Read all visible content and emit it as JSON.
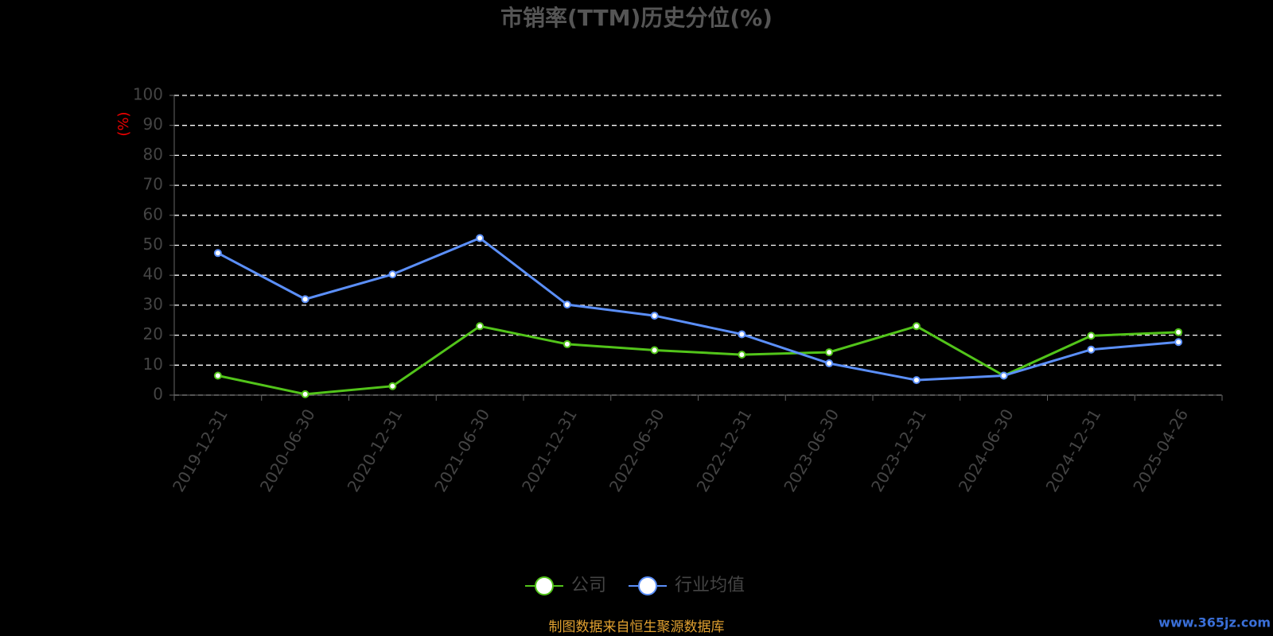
{
  "chart_data": {
    "type": "line",
    "title": "市销率(TTM)历史分位(%)",
    "y_axis_label": "(%)",
    "categories": [
      "2019-12-31",
      "2020-06-30",
      "2020-12-31",
      "2021-06-30",
      "2021-12-31",
      "2022-06-30",
      "2022-12-31",
      "2023-06-30",
      "2023-12-31",
      "2024-06-30",
      "2024-12-31",
      "2025-04-26"
    ],
    "series": [
      {
        "name": "公司",
        "color": "#52c41a",
        "values": [
          6.5,
          0.3,
          3,
          23,
          17,
          15,
          13.5,
          14.3,
          23,
          6.5,
          19.8,
          21
        ]
      },
      {
        "name": "行业均值",
        "color": "#5b8ff9",
        "values": [
          47.4,
          32,
          40.3,
          52.4,
          30.2,
          26.5,
          20.3,
          10.6,
          5,
          6.5,
          15.2,
          17.7
        ]
      }
    ],
    "ylim": [
      0,
      100
    ],
    "yticks": [
      0,
      10,
      20,
      30,
      40,
      50,
      60,
      70,
      80,
      90,
      100
    ],
    "grid": true,
    "source": "制图数据来自恒生聚源数据库",
    "watermark": "www.365jz.com"
  }
}
